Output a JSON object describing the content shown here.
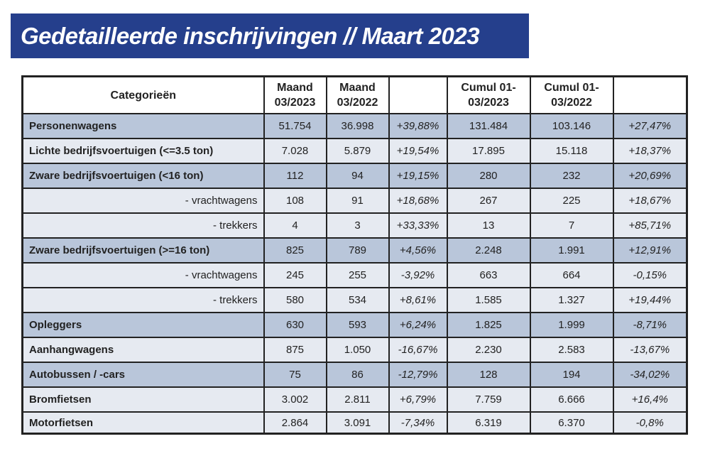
{
  "title": "Gedetailleerde inschrijvingen // Maart 2023",
  "headers": [
    "Categorieën",
    "Maand 03/2023",
    "Maand 03/2022",
    "",
    "Cumul 01-03/2023",
    "Cumul 01-03/2022",
    ""
  ],
  "rows": [
    {
      "cat": "Personenwagens",
      "sub": false,
      "dark": true,
      "v": [
        "51.754",
        "36.998",
        "+39,88%",
        "131.484",
        "103.146",
        "+27,47%"
      ]
    },
    {
      "cat": "Lichte bedrijfsvoertuigen (<=3.5 ton)",
      "sub": false,
      "dark": false,
      "v": [
        "7.028",
        "5.879",
        "+19,54%",
        "17.895",
        "15.118",
        "+18,37%"
      ]
    },
    {
      "cat": "Zware bedrijfsvoertuigen (<16 ton)",
      "sub": false,
      "dark": true,
      "v": [
        "112",
        "94",
        "+19,15%",
        "280",
        "232",
        "+20,69%"
      ]
    },
    {
      "cat": "- vrachtwagens",
      "sub": true,
      "dark": false,
      "v": [
        "108",
        "91",
        "+18,68%",
        "267",
        "225",
        "+18,67%"
      ]
    },
    {
      "cat": "- trekkers",
      "sub": true,
      "dark": false,
      "v": [
        "4",
        "3",
        "+33,33%",
        "13",
        "7",
        "+85,71%"
      ]
    },
    {
      "cat": "Zware bedrijfsvoertuigen (>=16 ton)",
      "sub": false,
      "dark": true,
      "v": [
        "825",
        "789",
        "+4,56%",
        "2.248",
        "1.991",
        "+12,91%"
      ]
    },
    {
      "cat": "- vrachtwagens",
      "sub": true,
      "dark": false,
      "v": [
        "245",
        "255",
        "-3,92%",
        "663",
        "664",
        "-0,15%"
      ]
    },
    {
      "cat": "- trekkers",
      "sub": true,
      "dark": false,
      "v": [
        "580",
        "534",
        "+8,61%",
        "1.585",
        "1.327",
        "+19,44%"
      ]
    },
    {
      "cat": "Opleggers",
      "sub": false,
      "dark": true,
      "v": [
        "630",
        "593",
        "+6,24%",
        "1.825",
        "1.999",
        "-8,71%"
      ]
    },
    {
      "cat": "Aanhangwagens",
      "sub": false,
      "dark": false,
      "v": [
        "875",
        "1.050",
        "-16,67%",
        "2.230",
        "2.583",
        "-13,67%"
      ]
    },
    {
      "cat": "Autobussen / -cars",
      "sub": false,
      "dark": true,
      "v": [
        "75",
        "86",
        "-12,79%",
        "128",
        "194",
        "-34,02%"
      ]
    },
    {
      "cat": "Bromfietsen",
      "sub": false,
      "dark": false,
      "v": [
        "3.002",
        "2.811",
        "+6,79%",
        "7.759",
        "6.666",
        "+16,4%"
      ]
    },
    {
      "cat": "Motorfietsen",
      "sub": false,
      "dark": false,
      "v": [
        "2.864",
        "3.091",
        "-7,34%",
        "6.319",
        "6.370",
        "-0,8%"
      ]
    }
  ],
  "colors": {
    "title_bg": "#253f8c",
    "row_dark": "#b9c6da",
    "row_light": "#e6eaf1"
  }
}
